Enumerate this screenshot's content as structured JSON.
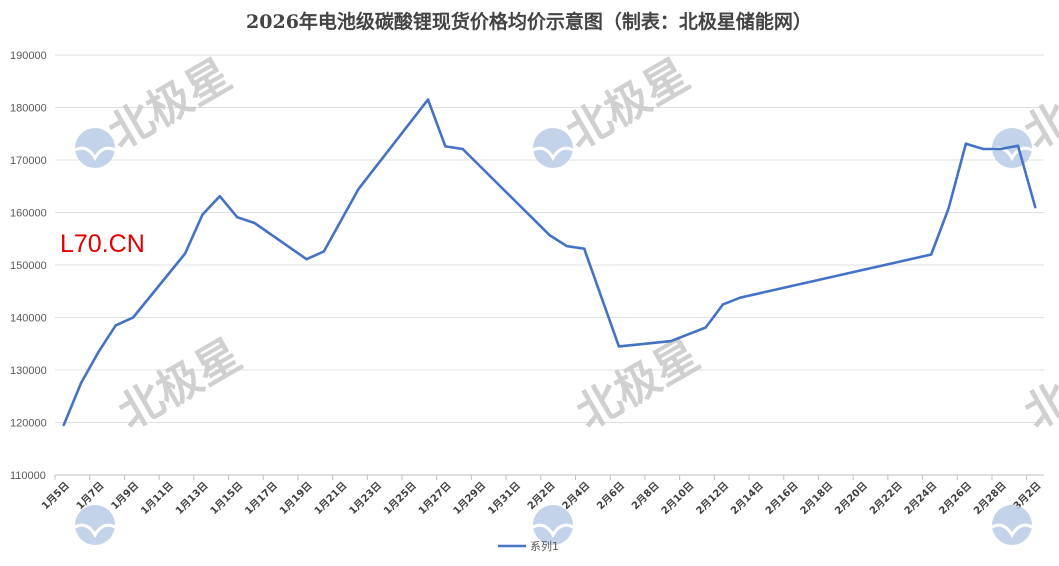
{
  "chart_data": {
    "type": "line",
    "title": "2026年电池级碳酸锂现货价格均价示意图（制表：北极星储能网）",
    "xlabel": "",
    "ylabel": "",
    "ylim": [
      110000,
      190000
    ],
    "yticks": [
      "110000",
      "120000",
      "130000",
      "140000",
      "150000",
      "160000",
      "170000",
      "180000",
      "190000"
    ],
    "grid": true,
    "legend_position": "bottom",
    "categories_range": [
      "2026-01-05",
      "2026-03-02"
    ],
    "xtick_labels": [
      "1月5日",
      "1月7日",
      "1月9日",
      "1月11日",
      "1月13日",
      "1月15日",
      "1月17日",
      "1月19日",
      "1月21日",
      "1月23日",
      "1月25日",
      "1月27日",
      "1月29日",
      "1月31日",
      "2月2日",
      "2月4日",
      "2月6日",
      "2月8日",
      "2月10日",
      "2月12日",
      "2月14日",
      "2月16日",
      "2月18日",
      "2月20日",
      "2月22日",
      "2月24日",
      "2月26日",
      "2月28日",
      "3月2日"
    ],
    "series": [
      {
        "name": "系列1",
        "color": "#4472C4",
        "points": [
          {
            "x": "2026-01-05",
            "y": 119500
          },
          {
            "x": "2026-01-06",
            "y": 127500
          },
          {
            "x": "2026-01-07",
            "y": 133400
          },
          {
            "x": "2026-01-08",
            "y": 138500
          },
          {
            "x": "2026-01-09",
            "y": 140000
          },
          {
            "x": "2026-01-12",
            "y": 152200
          },
          {
            "x": "2026-01-13",
            "y": 159600
          },
          {
            "x": "2026-01-14",
            "y": 163100
          },
          {
            "x": "2026-01-15",
            "y": 159100
          },
          {
            "x": "2026-01-16",
            "y": 158000
          },
          {
            "x": "2026-01-19",
            "y": 151100
          },
          {
            "x": "2026-01-20",
            "y": 152600
          },
          {
            "x": "2026-01-22",
            "y": 164500
          },
          {
            "x": "2026-01-26",
            "y": 181500
          },
          {
            "x": "2026-01-27",
            "y": 172600
          },
          {
            "x": "2026-01-28",
            "y": 172100
          },
          {
            "x": "2026-02-02",
            "y": 155700
          },
          {
            "x": "2026-02-03",
            "y": 153600
          },
          {
            "x": "2026-02-04",
            "y": 153100
          },
          {
            "x": "2026-02-06",
            "y": 134500
          },
          {
            "x": "2026-02-09",
            "y": 135500
          },
          {
            "x": "2026-02-11",
            "y": 138100
          },
          {
            "x": "2026-02-12",
            "y": 142500
          },
          {
            "x": "2026-02-13",
            "y": 143800
          },
          {
            "x": "2026-02-24",
            "y": 152000
          },
          {
            "x": "2026-02-25",
            "y": 160800
          },
          {
            "x": "2026-02-26",
            "y": 173100
          },
          {
            "x": "2026-02-27",
            "y": 172100
          },
          {
            "x": "2026-02-28",
            "y": 172100
          },
          {
            "x": "2026-03-01",
            "y": 172700
          },
          {
            "x": "2026-03-02",
            "y": 161000
          }
        ]
      }
    ]
  },
  "watermarks": {
    "brand_text": "北极星",
    "site_text": "L70.CN",
    "logo_color": "#b9cde6",
    "text_color": "#c8c8c8",
    "site_color": "#e00000"
  }
}
